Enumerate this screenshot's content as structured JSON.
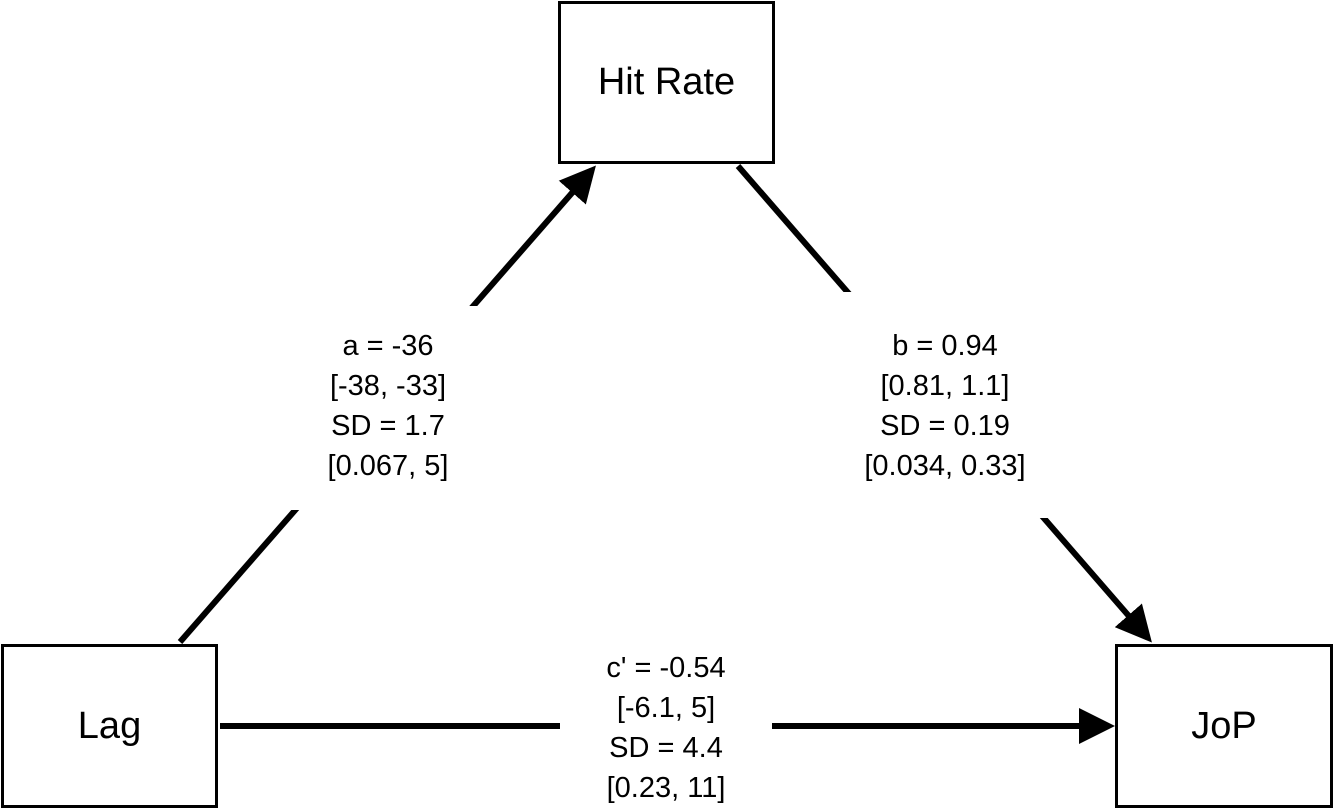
{
  "nodes": {
    "hit_rate": "Hit Rate",
    "lag": "Lag",
    "jop": "JoP"
  },
  "paths": {
    "a": {
      "coefficient": "a = -36",
      "ci": "[-38, -33]",
      "sd": "SD = 1.7",
      "sd_ci": "[0.067, 5]"
    },
    "b": {
      "coefficient": "b = 0.94",
      "ci": "[0.81, 1.1]",
      "sd": "SD = 0.19",
      "sd_ci": "[0.034, 0.33]"
    },
    "c_prime": {
      "coefficient": "c' = -0.54",
      "ci": "[-6.1, 5]",
      "sd": "SD = 4.4",
      "sd_ci": "[0.23, 11]"
    }
  },
  "colors": {
    "line": "#000000",
    "background": "#ffffff"
  }
}
